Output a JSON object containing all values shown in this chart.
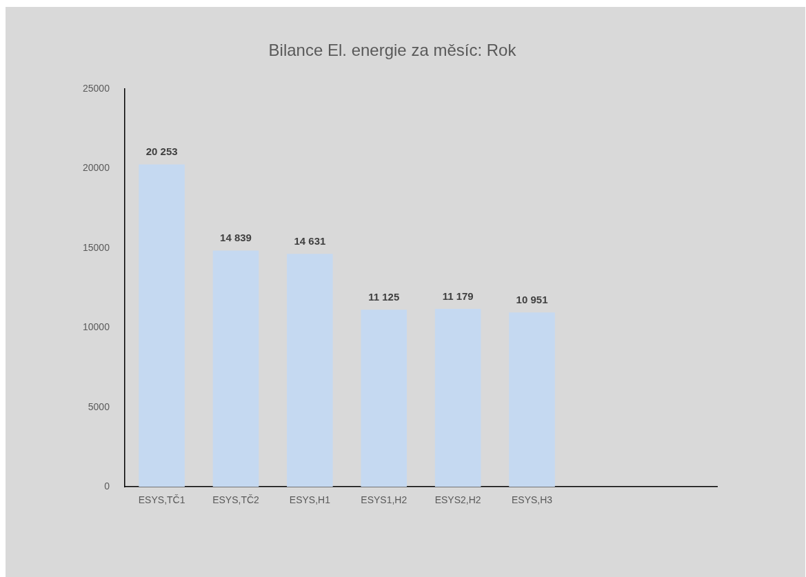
{
  "chart_data": {
    "type": "bar",
    "title": "Bilance El. energie za měsíc: Rok",
    "categories": [
      "ESYS,TČ1",
      "ESYS,TČ2",
      "ESYS,H1",
      "ESYS1,H2",
      "ESYS2,H2",
      "ESYS,H3",
      null,
      null
    ],
    "values": [
      20253,
      14839,
      14631,
      11125,
      11179,
      10951,
      null,
      null
    ],
    "value_labels": [
      "20 253",
      "14 839",
      "14 631",
      "11 125",
      "11 179",
      "10 951",
      null,
      null
    ],
    "color": "#c5d9f1",
    "ylim": [
      0,
      25000
    ],
    "yticks": [
      0,
      5000,
      10000,
      15000,
      20000,
      25000
    ],
    "grid": false,
    "legend": false
  }
}
